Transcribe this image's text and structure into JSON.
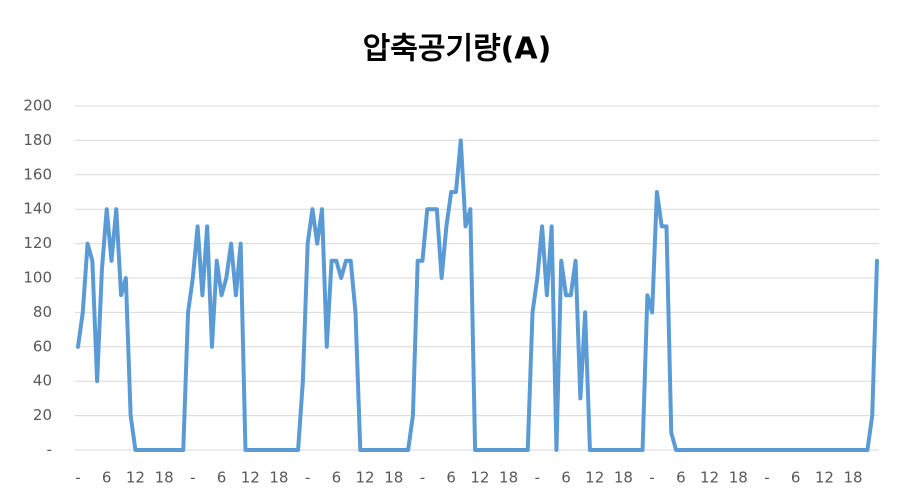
{
  "chart_data": {
    "type": "line",
    "title": "압축공기량(A)",
    "categories": [
      "-",
      null,
      null,
      null,
      null,
      null,
      "6",
      null,
      null,
      null,
      null,
      null,
      "12",
      null,
      null,
      null,
      null,
      null,
      "18",
      null,
      null,
      null,
      null,
      null,
      "-",
      null,
      null,
      null,
      null,
      null,
      "6",
      null,
      null,
      null,
      null,
      null,
      "12",
      null,
      null,
      null,
      null,
      null,
      "18",
      null,
      null,
      null,
      null,
      null,
      "-",
      null,
      null,
      null,
      null,
      null,
      "6",
      null,
      null,
      null,
      null,
      null,
      "12",
      null,
      null,
      null,
      null,
      null,
      "18",
      null,
      null,
      null,
      null,
      null,
      "-",
      null,
      null,
      null,
      null,
      null,
      "6",
      null,
      null,
      null,
      null,
      null,
      "12",
      null,
      null,
      null,
      null,
      null,
      "18",
      null,
      null,
      null,
      null,
      null,
      "-",
      null,
      null,
      null,
      null,
      null,
      "6",
      null,
      null,
      null,
      null,
      null,
      "12",
      null,
      null,
      null,
      null,
      null,
      "18",
      null,
      null,
      null,
      null,
      null,
      "-",
      null,
      null,
      null,
      null,
      null,
      "6",
      null,
      null,
      null,
      null,
      null,
      "12",
      null,
      null,
      null,
      null,
      null,
      "18",
      null,
      null,
      null,
      null,
      null,
      "-",
      null,
      null,
      null,
      null,
      null,
      "6",
      null,
      null,
      null,
      null,
      null,
      "12",
      null,
      null,
      null,
      null,
      null,
      "18",
      null,
      null,
      null,
      null,
      null
    ],
    "values": [
      60,
      80,
      120,
      110,
      40,
      105,
      140,
      110,
      140,
      90,
      100,
      20,
      0,
      0,
      0,
      0,
      0,
      0,
      0,
      0,
      0,
      0,
      0,
      80,
      100,
      130,
      90,
      130,
      60,
      110,
      90,
      100,
      120,
      90,
      120,
      0,
      0,
      0,
      0,
      0,
      0,
      0,
      0,
      0,
      0,
      0,
      0,
      40,
      120,
      140,
      120,
      140,
      60,
      110,
      110,
      100,
      110,
      110,
      80,
      0,
      0,
      0,
      0,
      0,
      0,
      0,
      0,
      0,
      0,
      0,
      20,
      110,
      110,
      140,
      140,
      140,
      100,
      130,
      150,
      150,
      180,
      130,
      140,
      0,
      0,
      0,
      0,
      0,
      0,
      0,
      0,
      0,
      0,
      0,
      0,
      80,
      100,
      130,
      90,
      130,
      0,
      110,
      90,
      90,
      110,
      30,
      80,
      0,
      0,
      0,
      0,
      0,
      0,
      0,
      0,
      0,
      0,
      0,
      0,
      90,
      80,
      150,
      130,
      130,
      10,
      0,
      0,
      0,
      0,
      0,
      0,
      0,
      0,
      0,
      0,
      0,
      0,
      0,
      0,
      0,
      0,
      0,
      0,
      0,
      0,
      0,
      0,
      0,
      0,
      0,
      0,
      0,
      0,
      0,
      0,
      0,
      0,
      0,
      0,
      0,
      0,
      0,
      0,
      0,
      0,
      0,
      20,
      110
    ],
    "color": "#5b9bd5",
    "ylim": [
      0,
      200
    ],
    "yticks": [
      {
        "value": 0,
        "label": "-"
      },
      20,
      40,
      60,
      80,
      100,
      120,
      140,
      160,
      180,
      200
    ],
    "grid": true
  }
}
